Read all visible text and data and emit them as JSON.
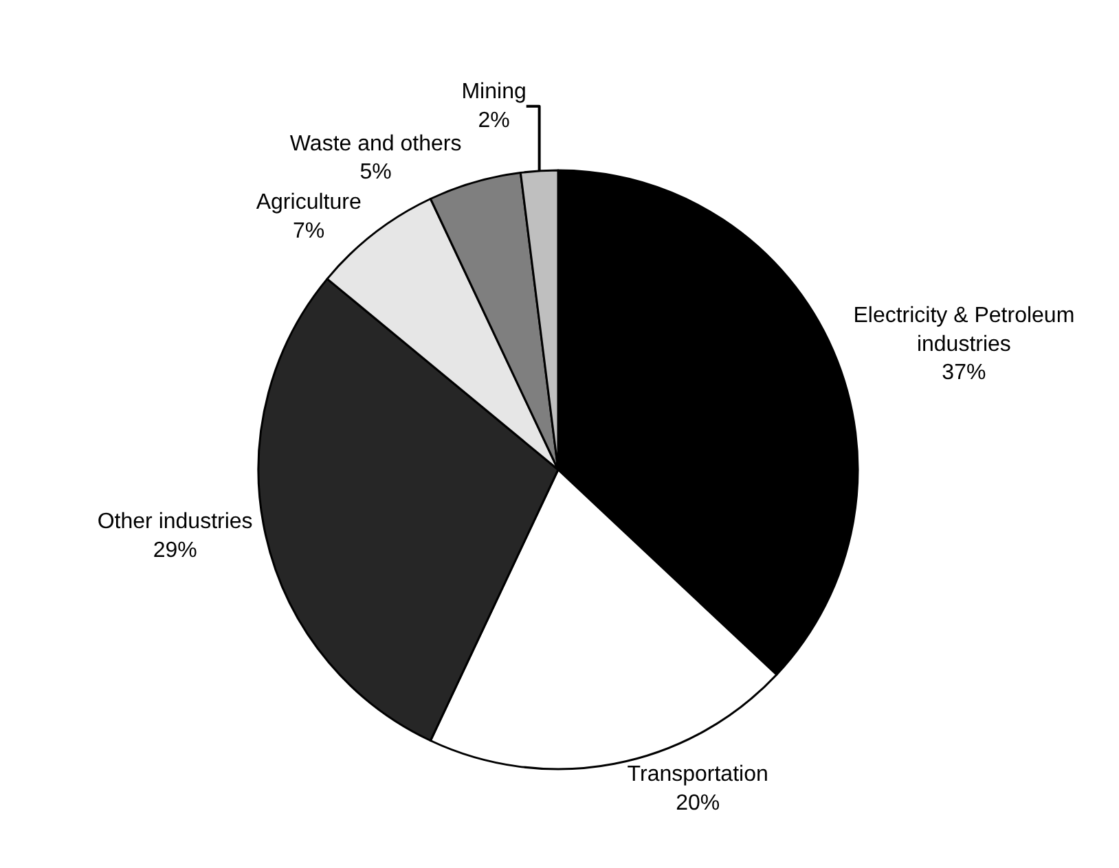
{
  "chart_data": {
    "type": "pie",
    "categories": [
      "Electricity & Petroleum industries",
      "Transportation",
      "Other industries",
      "Agriculture",
      "Waste and others",
      "Mining"
    ],
    "values": [
      37,
      20,
      29,
      7,
      5,
      2
    ],
    "colors": [
      "#000000",
      "#ffffff",
      "#262626",
      "#e6e6e6",
      "#7f7f7f",
      "#bfbfbf"
    ],
    "value_labels": [
      "37%",
      "20%",
      "29%",
      "7%",
      "5%",
      "2%"
    ]
  }
}
